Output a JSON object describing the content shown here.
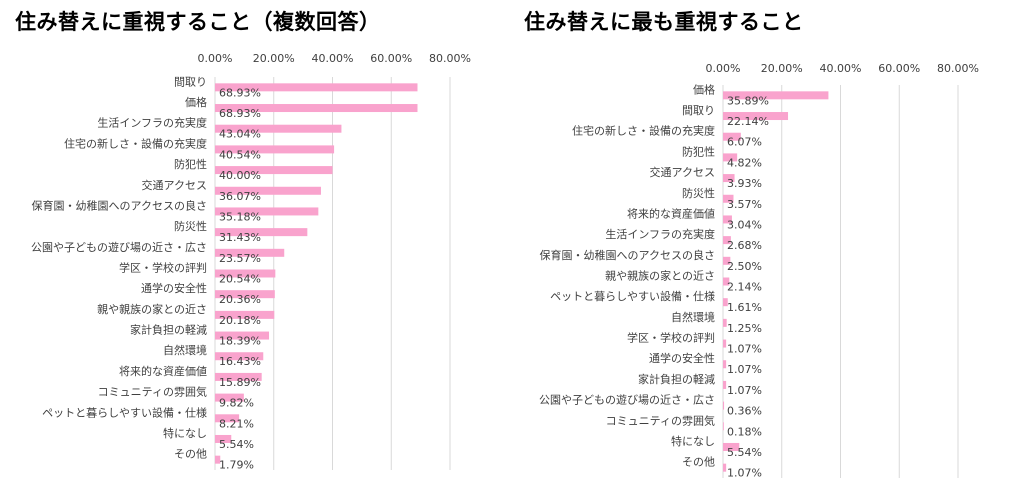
{
  "chart_data": [
    {
      "type": "bar",
      "orientation": "horizontal",
      "title": "住み替えに重視すること（複数回答）",
      "xlim": [
        0,
        80
      ],
      "ticks": [
        "0.00%",
        "20.00%",
        "40.00%",
        "60.00%",
        "80.00%"
      ],
      "grid": true,
      "bar_color": "#f9a3cd",
      "categories": [
        "間取り",
        "価格",
        "生活インフラの充実度",
        "住宅の新しさ・設備の充実度",
        "防犯性",
        "交通アクセス",
        "保育園・幼稚園へのアクセスの良さ",
        "防災性",
        "公園や子どもの遊び場の近さ・広さ",
        "学区・学校の評判",
        "通学の安全性",
        "親や親族の家との近さ",
        "家計負担の軽減",
        "自然環境",
        "将来的な資産価値",
        "コミュニティの雰囲気",
        "ペットと暮らしやすい設備・仕様",
        "特になし",
        "その他"
      ],
      "values": [
        68.93,
        68.93,
        43.04,
        40.54,
        40.0,
        36.07,
        35.18,
        31.43,
        23.57,
        20.54,
        20.36,
        20.18,
        18.39,
        16.43,
        15.89,
        9.82,
        8.21,
        5.54,
        1.79
      ],
      "labels": [
        "68.93%",
        "68.93%",
        "43.04%",
        "40.54%",
        "40.00%",
        "36.07%",
        "35.18%",
        "31.43%",
        "23.57%",
        "20.54%",
        "20.36%",
        "20.18%",
        "18.39%",
        "16.43%",
        "15.89%",
        "9.82%",
        "8.21%",
        "5.54%",
        "1.79%"
      ]
    },
    {
      "type": "bar",
      "orientation": "horizontal",
      "title": "住み替えに最も重視すること",
      "xlim": [
        0,
        80
      ],
      "ticks": [
        "0.00%",
        "20.00%",
        "40.00%",
        "60.00%",
        "80.00%"
      ],
      "grid": true,
      "bar_color": "#f9a3cd",
      "categories": [
        "価格",
        "間取り",
        "住宅の新しさ・設備の充実度",
        "防犯性",
        "交通アクセス",
        "防災性",
        "将来的な資産価値",
        "生活インフラの充実度",
        "保育園・幼稚園へのアクセスの良さ",
        "親や親族の家との近さ",
        "ペットと暮らしやすい設備・仕様",
        "自然環境",
        "学区・学校の評判",
        "通学の安全性",
        "家計負担の軽減",
        "公園や子どもの遊び場の近さ・広さ",
        "コミュニティの雰囲気",
        "特になし",
        "その他"
      ],
      "values": [
        35.89,
        22.14,
        6.07,
        4.82,
        3.93,
        3.57,
        3.04,
        2.68,
        2.5,
        2.14,
        1.61,
        1.25,
        1.07,
        1.07,
        1.07,
        0.36,
        0.18,
        5.54,
        1.07
      ],
      "labels": [
        "35.89%",
        "22.14%",
        "6.07%",
        "4.82%",
        "3.93%",
        "3.57%",
        "3.04%",
        "2.68%",
        "2.50%",
        "2.14%",
        "1.61%",
        "1.25%",
        "1.07%",
        "1.07%",
        "1.07%",
        "0.36%",
        "0.18%",
        "5.54%",
        "1.07%"
      ]
    }
  ]
}
